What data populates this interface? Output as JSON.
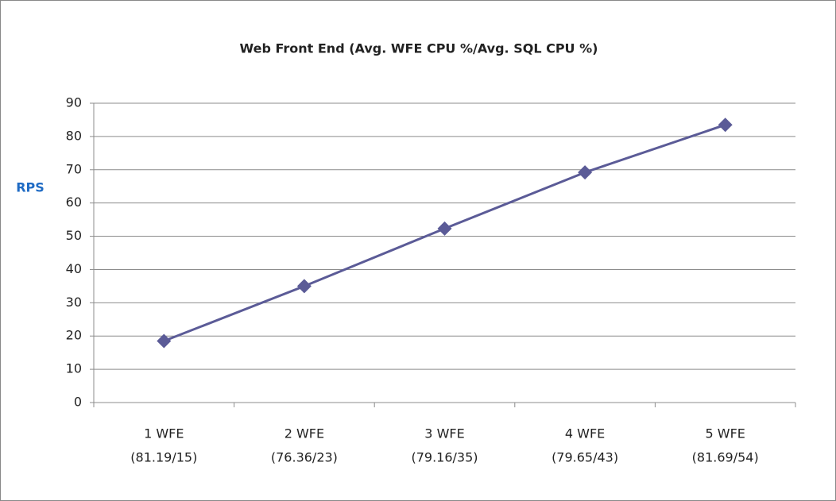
{
  "chart_data": {
    "type": "line",
    "title": "Web Front End (Avg. WFE CPU %/Avg. SQL CPU %)",
    "y_label": "RPS",
    "categories": [
      [
        "1 WFE",
        "(81.19/15)"
      ],
      [
        "2 WFE",
        "(76.36/23)"
      ],
      [
        "3 WFE",
        "(79.16/35)"
      ],
      [
        "4 WFE",
        "(79.65/43)"
      ],
      [
        "5 WFE",
        "(81.69/54)"
      ]
    ],
    "values": [
      18.5,
      35,
      52.3,
      69.2,
      83.5
    ],
    "color": "#5b5b97",
    "ylim": [
      0,
      90
    ],
    "yticks": [
      0,
      10,
      20,
      30,
      40,
      50,
      60,
      70,
      80,
      90
    ],
    "grid": true
  }
}
